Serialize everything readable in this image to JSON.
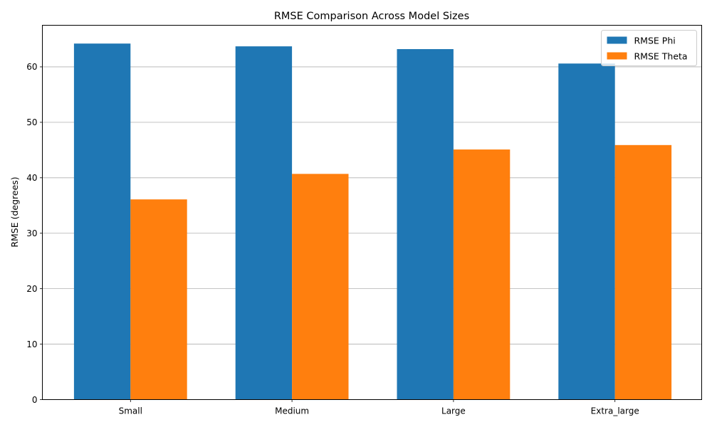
{
  "chart_data": {
    "type": "bar",
    "title": "RMSE Comparison Across Model Sizes",
    "xlabel": "",
    "ylabel": "RMSE (degrees)",
    "categories": [
      "Small",
      "Medium",
      "Large",
      "Extra_large"
    ],
    "series": [
      {
        "name": "RMSE Phi",
        "values": [
          64.2,
          63.7,
          63.2,
          60.6
        ],
        "color": "#1f77b4"
      },
      {
        "name": "RMSE Theta",
        "values": [
          36.1,
          40.7,
          45.1,
          45.9
        ],
        "color": "#ff7f0e"
      }
    ],
    "ylim": [
      0,
      67.5
    ],
    "yticks": [
      0,
      10,
      20,
      30,
      40,
      50,
      60
    ],
    "grid": "y",
    "legend_position": "top-right"
  }
}
